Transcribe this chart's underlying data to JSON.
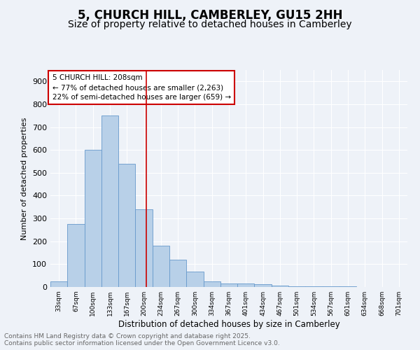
{
  "title": "5, CHURCH HILL, CAMBERLEY, GU15 2HH",
  "subtitle": "Size of property relative to detached houses in Camberley",
  "xlabel": "Distribution of detached houses by size in Camberley",
  "ylabel": "Number of detached properties",
  "bin_labels": [
    "33sqm",
    "67sqm",
    "100sqm",
    "133sqm",
    "167sqm",
    "200sqm",
    "234sqm",
    "267sqm",
    "300sqm",
    "334sqm",
    "367sqm",
    "401sqm",
    "434sqm",
    "467sqm",
    "501sqm",
    "534sqm",
    "567sqm",
    "601sqm",
    "634sqm",
    "668sqm",
    "701sqm"
  ],
  "bar_heights": [
    25,
    275,
    600,
    750,
    540,
    340,
    180,
    118,
    68,
    25,
    15,
    15,
    12,
    5,
    3,
    3,
    2,
    2,
    1,
    1,
    0
  ],
  "bar_color": "#b8d0e8",
  "bar_edge_color": "#6699cc",
  "ylim": [
    0,
    950
  ],
  "yticks": [
    0,
    100,
    200,
    300,
    400,
    500,
    600,
    700,
    800,
    900
  ],
  "property_line_x": 5.15,
  "property_line_color": "#cc0000",
  "annotation_text": "5 CHURCH HILL: 208sqm\n← 77% of detached houses are smaller (2,263)\n22% of semi-detached houses are larger (659) →",
  "annotation_box_color": "#ffffff",
  "annotation_box_edge_color": "#cc0000",
  "footer_line1": "Contains HM Land Registry data © Crown copyright and database right 2025.",
  "footer_line2": "Contains public sector information licensed under the Open Government Licence v3.0.",
  "background_color": "#eef2f8",
  "grid_color": "#ffffff",
  "title_fontsize": 12,
  "subtitle_fontsize": 10,
  "annotation_fontsize": 7.5,
  "footer_fontsize": 6.5,
  "ylabel_fontsize": 8,
  "xlabel_fontsize": 8.5
}
